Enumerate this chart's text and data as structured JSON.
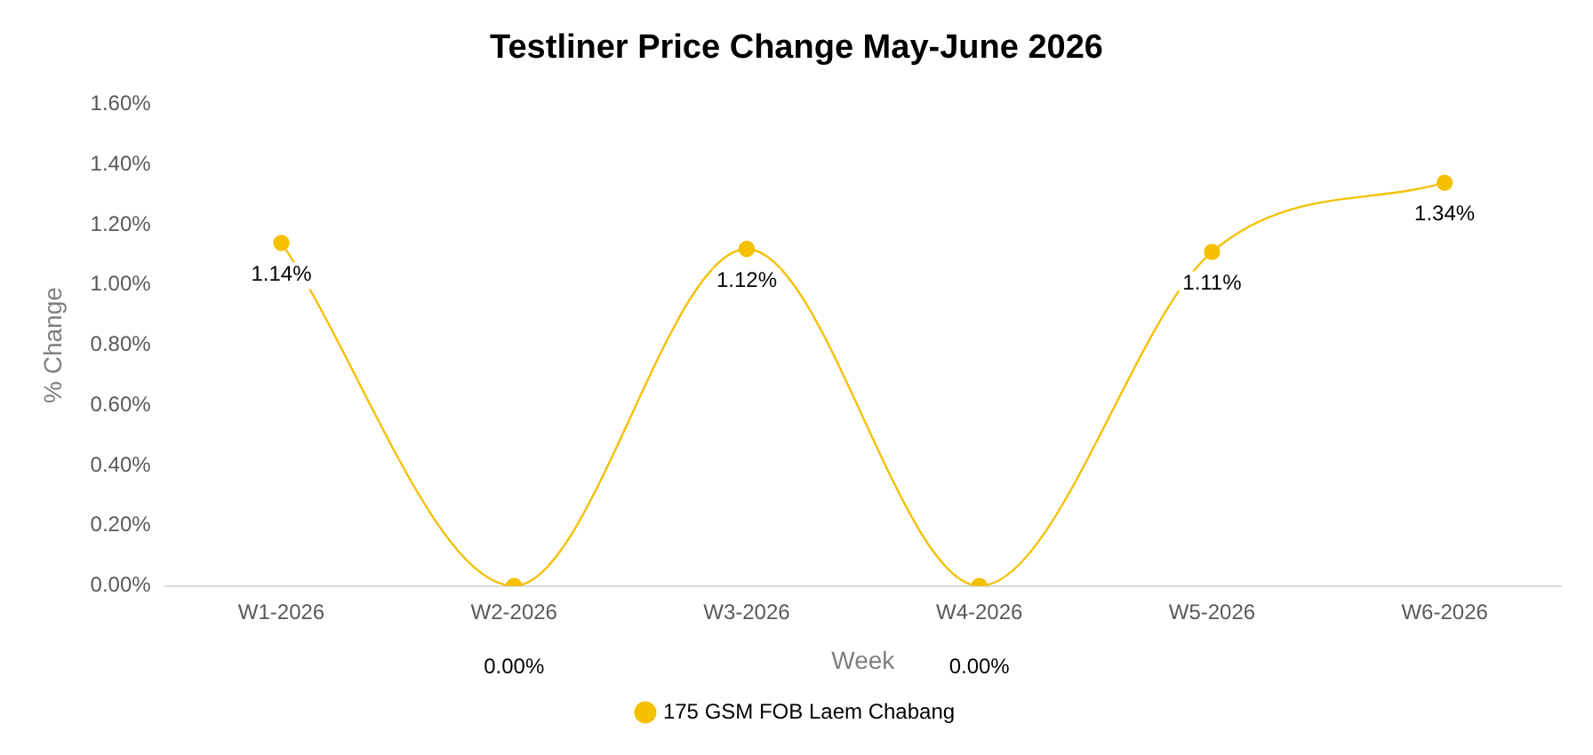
{
  "chart_data": {
    "type": "line",
    "title": "Testliner Price Change May-June 2026",
    "xlabel": "Week",
    "ylabel": "% Change",
    "categories": [
      "W1-2026",
      "W2-2026",
      "W3-2026",
      "W4-2026",
      "W5-2026",
      "W6-2026"
    ],
    "series": [
      {
        "name": "175 GSM FOB Laem Chabang",
        "color": "#f5c000",
        "values": [
          1.14,
          0,
          1.12,
          0,
          1.11,
          1.34
        ],
        "value_labels": [
          "1.14%",
          "0.00%",
          "1.12%",
          "0.00%",
          "1.11%",
          "1.34%"
        ]
      }
    ],
    "ylim": [
      0,
      1.6
    ],
    "yticks": [
      {
        "value": 0,
        "label": "0.00%"
      },
      {
        "value": 0.2,
        "label": "0.20%"
      },
      {
        "value": 0.4,
        "label": "0.40%"
      },
      {
        "value": 0.6,
        "label": "0.60%"
      },
      {
        "value": 0.8,
        "label": "0.80%"
      },
      {
        "value": 1.0,
        "label": "1.00%"
      },
      {
        "value": 1.2,
        "label": "1.20%"
      },
      {
        "value": 1.4,
        "label": "1.40%"
      },
      {
        "value": 1.6,
        "label": "1.60%"
      }
    ],
    "grid": false,
    "legend": "bottom",
    "marker": "circle",
    "line_style": "solid"
  }
}
